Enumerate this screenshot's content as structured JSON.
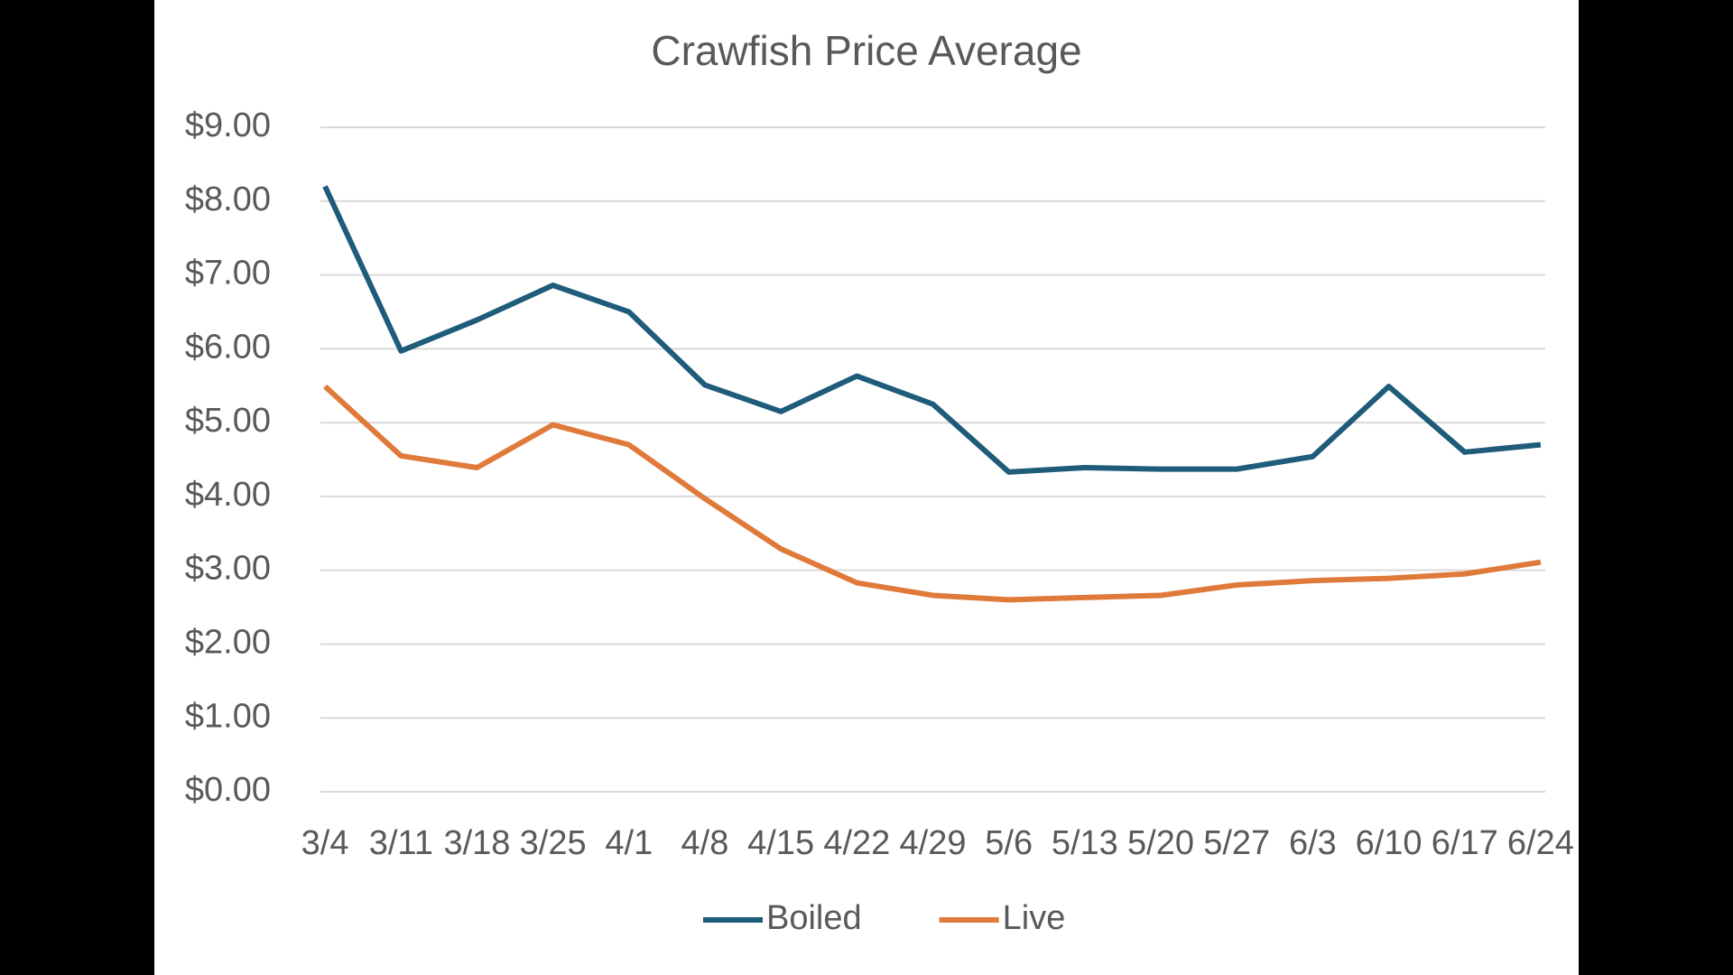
{
  "chart_data": {
    "type": "line",
    "title": "Crawfish Price Average",
    "categories": [
      "3/4",
      "3/11",
      "3/18",
      "3/25",
      "4/1",
      "4/8",
      "4/15",
      "4/22",
      "4/29",
      "5/6",
      "5/13",
      "5/20",
      "5/27",
      "6/3",
      "6/10",
      "6/17",
      "6/24"
    ],
    "series": [
      {
        "name": "Boiled",
        "color": "#1f5b7a",
        "values": [
          8.2,
          5.97,
          6.39,
          6.86,
          6.5,
          5.51,
          5.15,
          5.63,
          5.25,
          4.33,
          4.39,
          4.37,
          4.37,
          4.54,
          5.49,
          4.6,
          4.7
        ]
      },
      {
        "name": "Live",
        "color": "#e07a3a",
        "values": [
          5.49,
          4.55,
          4.39,
          4.97,
          4.7,
          3.97,
          3.29,
          2.83,
          2.66,
          2.6,
          2.63,
          2.66,
          2.8,
          2.86,
          2.89,
          2.95,
          3.11
        ]
      }
    ],
    "ylim": [
      0,
      9
    ],
    "yticks": [
      {
        "value": 0,
        "label": "$0.00"
      },
      {
        "value": 1,
        "label": "$1.00"
      },
      {
        "value": 2,
        "label": "$2.00"
      },
      {
        "value": 3,
        "label": "$3.00"
      },
      {
        "value": 4,
        "label": "$4.00"
      },
      {
        "value": 5,
        "label": "$5.00"
      },
      {
        "value": 6,
        "label": "$6.00"
      },
      {
        "value": 7,
        "label": "$7.00"
      },
      {
        "value": 8,
        "label": "$8.00"
      },
      {
        "value": 9,
        "label": "$9.00"
      }
    ],
    "grid": true,
    "legend": "bottom"
  }
}
